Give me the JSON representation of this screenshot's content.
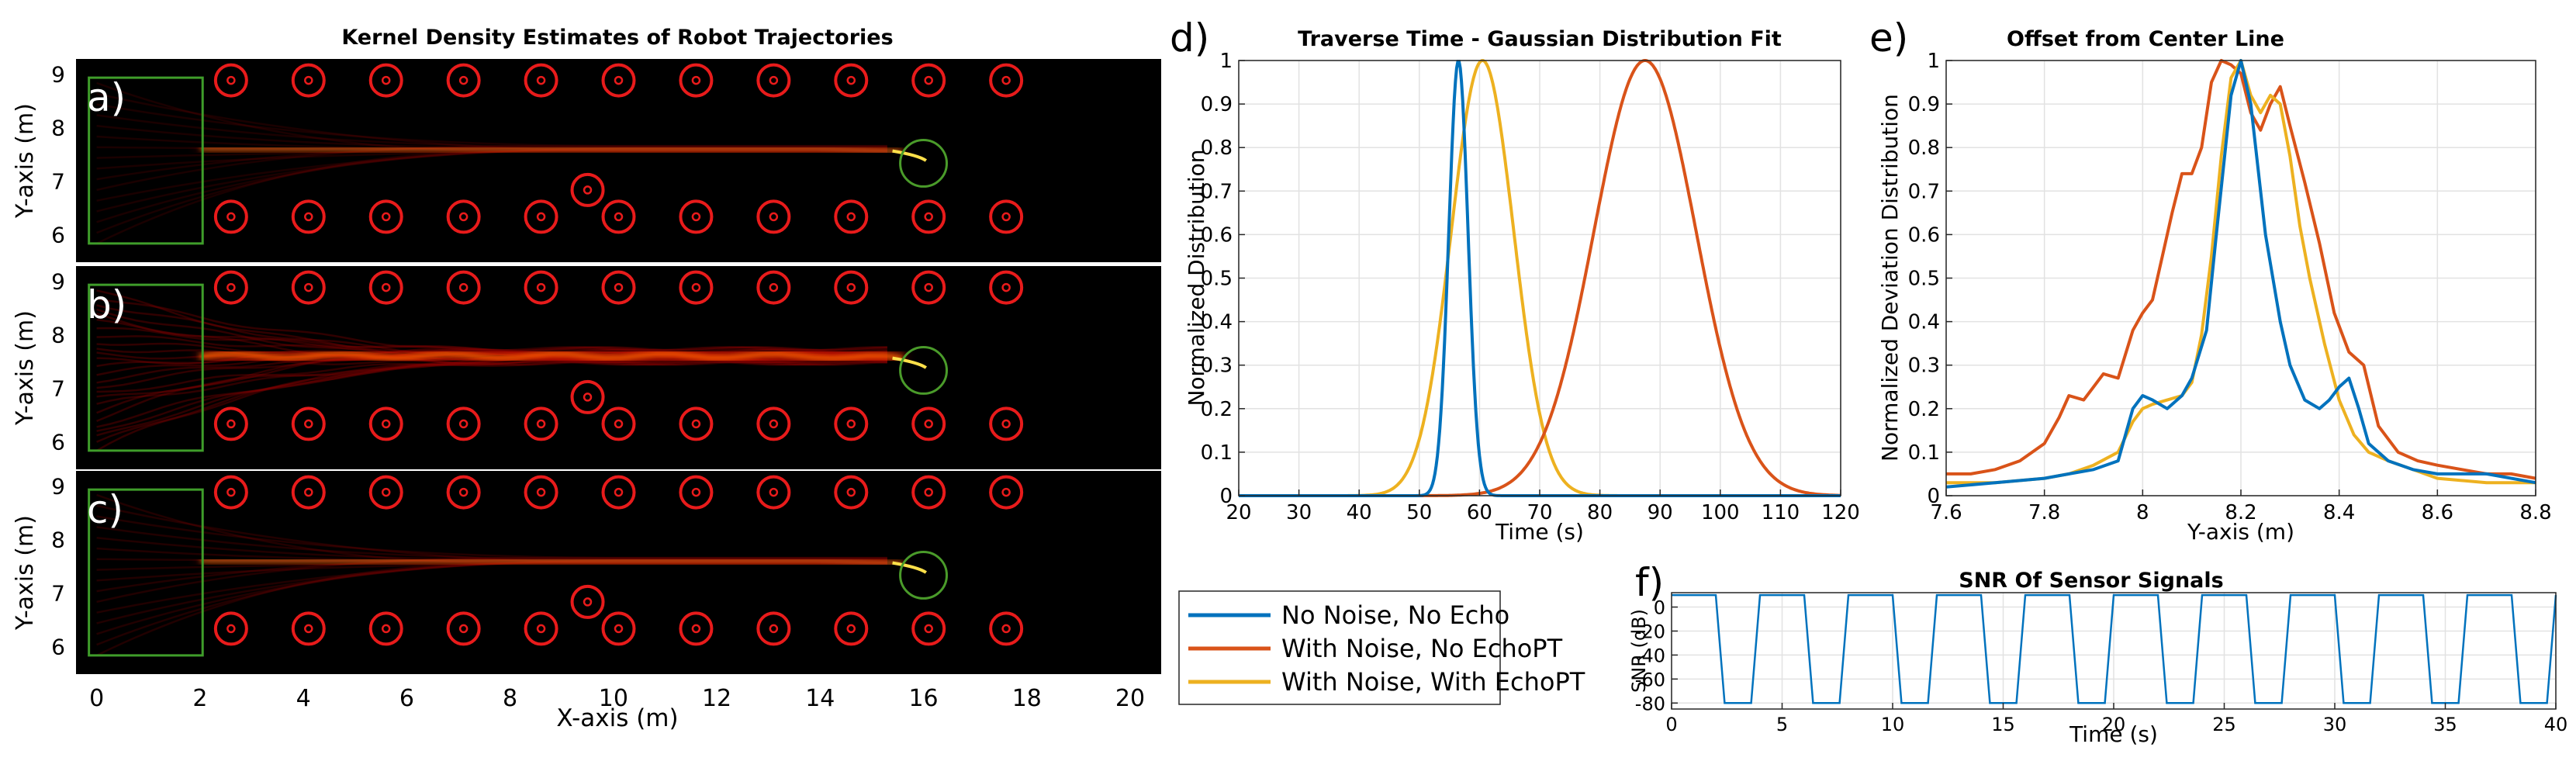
{
  "chart_data": [
    {
      "id": "kde",
      "type": "heatmap",
      "title": "Kernel Density Estimates of Robot Trajectories",
      "xlabel": "X-axis (m)",
      "ylabel": "Y-axis (m)",
      "xlim": [
        -0.4,
        20.6
      ],
      "xticks": [
        0,
        2,
        4,
        6,
        8,
        10,
        12,
        14,
        16,
        18,
        20
      ],
      "ylim": [
        5.5,
        9.3
      ],
      "yticks": [
        6,
        7,
        8,
        9
      ],
      "subplots": [
        {
          "label": "a)",
          "spread": 0.35,
          "intensity": 0.55
        },
        {
          "label": "b)",
          "spread": 0.6,
          "intensity": 1.0
        },
        {
          "label": "c)",
          "spread": 0.35,
          "intensity": 0.7
        }
      ],
      "start_region": {
        "x": [
          -0.15,
          2.05
        ],
        "y": [
          5.85,
          8.95
        ],
        "color": "#3f9d2a"
      },
      "goal": {
        "x": 16.0,
        "y": 7.35,
        "r": 0.45,
        "color": "#4a9b2a"
      },
      "obstacles": {
        "color": "#e81b1b",
        "top_row": {
          "y": 8.9,
          "x": [
            2.6,
            4.1,
            5.6,
            7.1,
            8.6,
            10.1,
            11.6,
            13.1,
            14.6,
            16.1,
            17.6
          ]
        },
        "bottom_row": {
          "y": 6.35,
          "x": [
            2.6,
            4.1,
            5.6,
            7.1,
            8.6,
            10.1,
            11.6,
            13.1,
            14.6,
            16.1,
            17.6
          ]
        },
        "extra": {
          "x": 9.5,
          "y": 6.85
        }
      }
    },
    {
      "id": "traverse",
      "label": "d)",
      "type": "line",
      "title": "Traverse Time - Gaussian Distribution Fit",
      "xlabel": "Time (s)",
      "ylabel": "Normalized Distribution",
      "xlim": [
        20,
        120
      ],
      "ylim": [
        0,
        1
      ],
      "xticks": [
        20,
        30,
        40,
        50,
        60,
        70,
        80,
        90,
        100,
        110,
        120
      ],
      "yticks": [
        0,
        0.1,
        0.2,
        0.3,
        0.4,
        0.5,
        0.6,
        0.7,
        0.8,
        0.9,
        1
      ],
      "ytick_labels": [
        "0",
        "0.1",
        "0.2",
        "0.3",
        "0.4",
        "0.5",
        "0.6",
        "0.7",
        "0.8",
        "0.9",
        "1"
      ],
      "series": [
        {
          "mean": 56.5,
          "sd": 1.6
        },
        {
          "mean": 87.5,
          "sd": 8.5
        },
        {
          "mean": 60.5,
          "sd": 5.2
        }
      ]
    },
    {
      "id": "offset",
      "label": "e)",
      "type": "line",
      "title": "Offset from Center Line",
      "xlabel": "Y-axis (m)",
      "ylabel": "Normalized Deviation Distribution",
      "xlim": [
        7.6,
        8.8
      ],
      "ylim": [
        0,
        1
      ],
      "xticks": [
        7.6,
        7.8,
        8,
        8.2,
        8.4,
        8.6,
        8.8
      ],
      "xtick_labels": [
        "7.6",
        "7.8",
        "8",
        "8.2",
        "8.4",
        "8.6",
        "8.8"
      ],
      "yticks": [
        0,
        0.1,
        0.2,
        0.3,
        0.4,
        0.5,
        0.6,
        0.7,
        0.8,
        0.9,
        1
      ],
      "ytick_labels": [
        "0",
        "0.1",
        "0.2",
        "0.3",
        "0.4",
        "0.5",
        "0.6",
        "0.7",
        "0.8",
        "0.9",
        "1"
      ],
      "series": [
        {
          "x": [
            7.6,
            7.7,
            7.8,
            7.85,
            7.9,
            7.95,
            7.98,
            8.0,
            8.02,
            8.05,
            8.08,
            8.1,
            8.13,
            8.15,
            8.18,
            8.2,
            8.22,
            8.25,
            8.28,
            8.3,
            8.33,
            8.36,
            8.38,
            8.4,
            8.42,
            8.44,
            8.46,
            8.5,
            8.55,
            8.6,
            8.7,
            8.8
          ],
          "y": [
            0.02,
            0.03,
            0.04,
            0.05,
            0.06,
            0.08,
            0.2,
            0.23,
            0.22,
            0.2,
            0.23,
            0.27,
            0.38,
            0.6,
            0.92,
            1.0,
            0.9,
            0.6,
            0.4,
            0.3,
            0.22,
            0.2,
            0.22,
            0.25,
            0.27,
            0.2,
            0.12,
            0.08,
            0.06,
            0.05,
            0.05,
            0.03
          ]
        },
        {
          "x": [
            7.6,
            7.65,
            7.7,
            7.75,
            7.8,
            7.83,
            7.85,
            7.88,
            7.9,
            7.92,
            7.95,
            7.98,
            8.0,
            8.02,
            8.04,
            8.06,
            8.08,
            8.1,
            8.12,
            8.14,
            8.16,
            8.18,
            8.2,
            8.22,
            8.24,
            8.26,
            8.28,
            8.3,
            8.33,
            8.36,
            8.39,
            8.42,
            8.45,
            8.48,
            8.52,
            8.56,
            8.6,
            8.65,
            8.7,
            8.75,
            8.8
          ],
          "y": [
            0.05,
            0.05,
            0.06,
            0.08,
            0.12,
            0.18,
            0.23,
            0.22,
            0.25,
            0.28,
            0.27,
            0.38,
            0.42,
            0.45,
            0.55,
            0.65,
            0.74,
            0.74,
            0.8,
            0.95,
            1.0,
            0.99,
            0.97,
            0.88,
            0.84,
            0.9,
            0.94,
            0.85,
            0.72,
            0.58,
            0.42,
            0.33,
            0.3,
            0.16,
            0.1,
            0.08,
            0.07,
            0.06,
            0.05,
            0.05,
            0.04
          ]
        },
        {
          "x": [
            7.6,
            7.7,
            7.8,
            7.85,
            7.9,
            7.95,
            7.98,
            8.0,
            8.02,
            8.05,
            8.08,
            8.1,
            8.12,
            8.14,
            8.16,
            8.18,
            8.2,
            8.22,
            8.24,
            8.26,
            8.28,
            8.3,
            8.32,
            8.34,
            8.37,
            8.4,
            8.43,
            8.46,
            8.5,
            8.55,
            8.6,
            8.7,
            8.8
          ],
          "y": [
            0.03,
            0.03,
            0.04,
            0.05,
            0.07,
            0.1,
            0.17,
            0.2,
            0.21,
            0.22,
            0.23,
            0.26,
            0.37,
            0.55,
            0.78,
            0.96,
            1.0,
            0.92,
            0.88,
            0.92,
            0.9,
            0.78,
            0.62,
            0.5,
            0.35,
            0.22,
            0.14,
            0.1,
            0.08,
            0.06,
            0.04,
            0.03,
            0.03
          ]
        }
      ]
    },
    {
      "id": "snr",
      "label": "f)",
      "type": "line",
      "title": "SNR Of Sensor Signals",
      "xlabel": "Time (s)",
      "ylabel": "SNR (dB)",
      "xlim": [
        0,
        40
      ],
      "ylim": [
        -85,
        12
      ],
      "xticks": [
        0,
        5,
        10,
        15,
        20,
        25,
        30,
        35,
        40
      ],
      "yticks": [
        0,
        -20,
        -40,
        -60,
        -80
      ],
      "ytick_labels": [
        "0",
        "-20",
        "-40",
        "-60",
        "-80"
      ],
      "high": 10,
      "low": -80,
      "period": 4,
      "high_duration": 2.0,
      "low_start": 2.4,
      "low_end": 3.6
    }
  ],
  "legend": [
    {
      "label": "No Noise, No Echo",
      "color": "#0072bd"
    },
    {
      "label": "With Noise, No EchoPT",
      "color": "#d95319"
    },
    {
      "label": "With Noise, With EchoPT",
      "color": "#edb120"
    }
  ]
}
